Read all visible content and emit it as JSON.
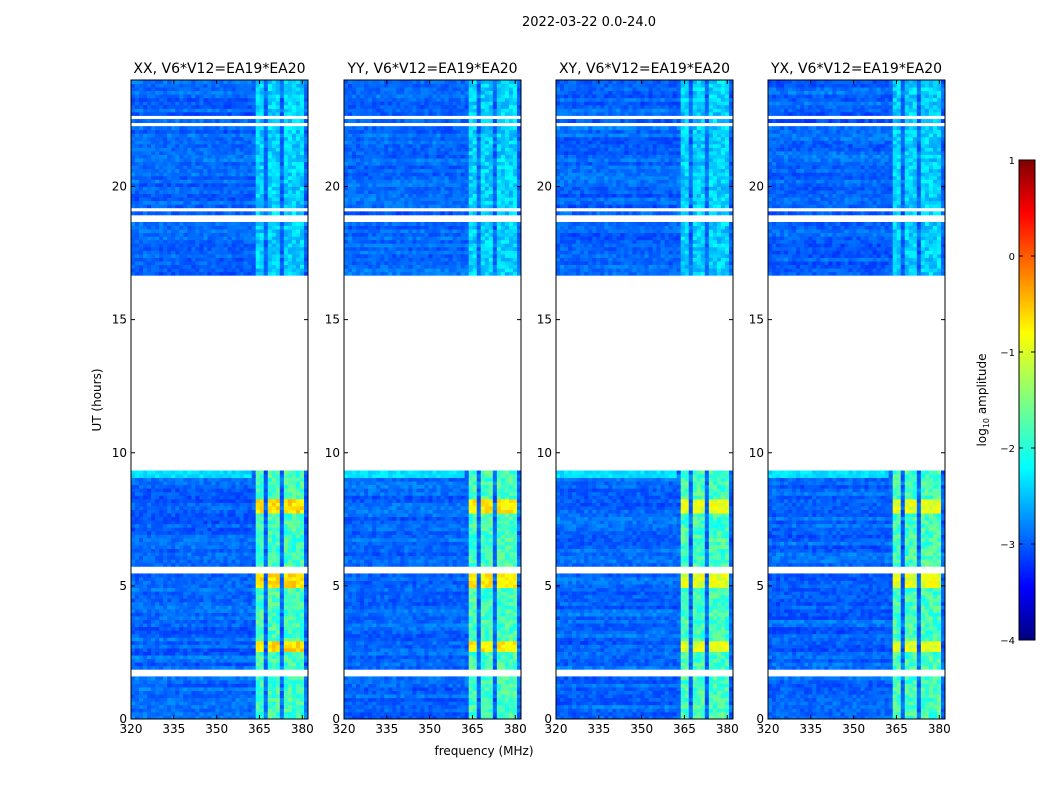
{
  "figure": {
    "suptitle": "2022-03-22 0.0-24.0",
    "xlabel": "frequency (MHz)",
    "ylabel": "UT (hours)"
  },
  "colors": {
    "background_ok": "#1a3ef0",
    "flagged": "#ffffff",
    "frame": "#000000"
  },
  "chart_data": {
    "type": "heatmap",
    "x_range": [
      320,
      382
    ],
    "y_range": [
      0,
      24
    ],
    "x_ticks": [
      320,
      335,
      350,
      365,
      380
    ],
    "y_ticks": [
      0,
      5,
      10,
      15,
      20
    ],
    "data_gaps_ut": [
      [
        1.63,
        1.88
      ],
      [
        5.45,
        5.7
      ],
      [
        9.35,
        16.7
      ],
      [
        18.72,
        18.9
      ],
      [
        19.05,
        19.2
      ],
      [
        22.3,
        22.45
      ],
      [
        22.55,
        22.7
      ]
    ],
    "signal_band_mhz": [
      362,
      381
    ],
    "signal_subbands_mhz": [
      [
        363,
        367
      ],
      [
        368,
        372
      ],
      [
        373,
        376
      ],
      [
        377,
        381
      ]
    ],
    "panels": [
      {
        "title": "XX, V6*V12=EA19*EA20",
        "peak_log_amp": -0.5
      },
      {
        "title": "YY, V6*V12=EA19*EA20",
        "peak_log_amp": -0.6
      },
      {
        "title": "XY, V6*V12=EA19*EA20",
        "peak_log_amp": -0.8
      },
      {
        "title": "YX, V6*V12=EA19*EA20",
        "peak_log_amp": -0.8
      }
    ],
    "colorbar": {
      "label": "log10 amplitude",
      "label_base": "log",
      "label_sub": "10",
      "label_rest": " amplitude",
      "range": [
        -4,
        1
      ],
      "ticks": [
        1,
        0,
        -1,
        -2,
        -3,
        -4
      ],
      "tick_labels": [
        "1",
        "0",
        "−1",
        "−2",
        "−3",
        "−4"
      ]
    }
  }
}
